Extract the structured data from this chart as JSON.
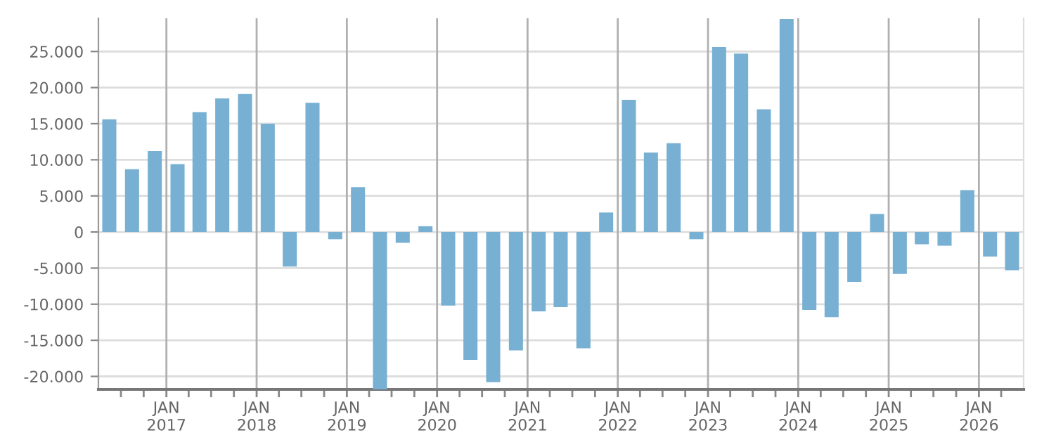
{
  "chart_data": {
    "type": "bar",
    "x": [
      "2016-05-15",
      "2016-08-15",
      "2016-11-15",
      "2017-02-15",
      "2017-05-15",
      "2017-08-15",
      "2017-11-15",
      "2018-02-15",
      "2018-05-15",
      "2018-08-15",
      "2018-11-15",
      "2019-02-15",
      "2019-05-15",
      "2019-08-15",
      "2019-11-15",
      "2020-02-15",
      "2020-05-15",
      "2020-08-15",
      "2020-11-15",
      "2021-02-15",
      "2021-05-15",
      "2021-08-15",
      "2021-11-15",
      "2022-02-15",
      "2022-05-15",
      "2022-08-15",
      "2022-11-15",
      "2023-02-15",
      "2023-05-15",
      "2023-08-15",
      "2023-11-15",
      "2024-02-15",
      "2024-05-15",
      "2024-08-15",
      "2024-11-15",
      "2025-02-15",
      "2025-05-15",
      "2025-08-15",
      "2025-11-15",
      "2026-02-15",
      "2026-05-15"
    ],
    "series": [
      {
        "color": "#77b0d2",
        "values": [
          15600,
          8700,
          11200,
          9400,
          16600,
          18500,
          19100,
          15000,
          -4800,
          17900,
          -1000,
          6200,
          -21800,
          -1500,
          800,
          -10200,
          -17700,
          -20800,
          -16400,
          -11000,
          -10400,
          -16100,
          2700,
          18300,
          11000,
          12300,
          -1000,
          25600,
          24700,
          17000,
          29500,
          -10800,
          -11800,
          -6900,
          2500,
          -5800,
          -1700,
          -1900,
          5800,
          -3400,
          -5300
        ]
      }
    ],
    "xlim": [
      "2016-04-01",
      "2026-07-01"
    ],
    "xticks": [
      {
        "value": "2016-07-01",
        "label": null
      },
      {
        "value": "2016-10-01",
        "label": null
      },
      {
        "value": "2017-01-01",
        "label": "JAN\n2017"
      },
      {
        "value": "2017-04-01",
        "label": null
      },
      {
        "value": "2017-07-01",
        "label": null
      },
      {
        "value": "2017-10-01",
        "label": null
      },
      {
        "value": "2018-01-01",
        "label": "JAN\n2018"
      },
      {
        "value": "2018-04-01",
        "label": null
      },
      {
        "value": "2018-07-01",
        "label": null
      },
      {
        "value": "2018-10-01",
        "label": null
      },
      {
        "value": "2019-01-01",
        "label": "JAN\n2019"
      },
      {
        "value": "2019-04-01",
        "label": null
      },
      {
        "value": "2019-07-01",
        "label": null
      },
      {
        "value": "2019-10-01",
        "label": null
      },
      {
        "value": "2020-01-01",
        "label": "JAN\n2020"
      },
      {
        "value": "2020-04-01",
        "label": null
      },
      {
        "value": "2020-07-01",
        "label": null
      },
      {
        "value": "2020-10-01",
        "label": null
      },
      {
        "value": "2021-01-01",
        "label": "JAN\n2021"
      },
      {
        "value": "2021-04-01",
        "label": null
      },
      {
        "value": "2021-07-01",
        "label": null
      },
      {
        "value": "2021-10-01",
        "label": null
      },
      {
        "value": "2022-01-01",
        "label": "JAN\n2022"
      },
      {
        "value": "2022-04-01",
        "label": null
      },
      {
        "value": "2022-07-01",
        "label": null
      },
      {
        "value": "2022-10-01",
        "label": null
      },
      {
        "value": "2023-01-01",
        "label": "JAN\n2023"
      },
      {
        "value": "2023-04-01",
        "label": null
      },
      {
        "value": "2023-07-01",
        "label": null
      },
      {
        "value": "2023-10-01",
        "label": null
      },
      {
        "value": "2024-01-01",
        "label": "JAN\n2024"
      },
      {
        "value": "2024-04-01",
        "label": null
      },
      {
        "value": "2024-07-01",
        "label": null
      },
      {
        "value": "2024-10-01",
        "label": null
      },
      {
        "value": "2025-01-01",
        "label": "JAN\n2025"
      },
      {
        "value": "2025-04-01",
        "label": null
      },
      {
        "value": "2025-07-01",
        "label": null
      },
      {
        "value": "2025-10-01",
        "label": null
      },
      {
        "value": "2026-01-01",
        "label": "JAN\n2026"
      },
      {
        "value": "2026-04-01",
        "label": null
      }
    ],
    "ylim": [
      -21800,
      29600
    ],
    "yticks": [
      {
        "value": -20000,
        "label": "-20.000"
      },
      {
        "value": -15000,
        "label": "-15.000"
      },
      {
        "value": -10000,
        "label": "-10.000"
      },
      {
        "value": -5000,
        "label": "-5.000"
      },
      0,
      {
        "value": 5000,
        "label": "5.000"
      },
      {
        "value": 10000,
        "label": "10.000"
      },
      {
        "value": 15000,
        "label": "15.000"
      },
      {
        "value": 20000,
        "label": "20.000"
      },
      {
        "value": 25000,
        "label": "25.000"
      }
    ],
    "grid": true
  }
}
